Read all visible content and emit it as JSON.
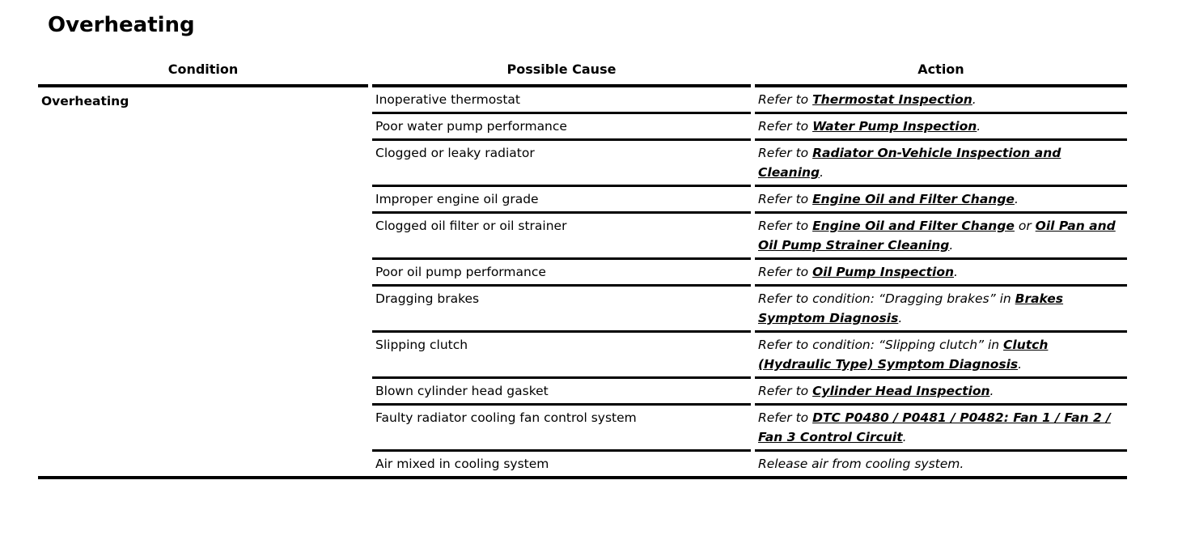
{
  "page": {
    "title": "Overheating"
  },
  "colors": {
    "text": "#000000",
    "background": "#ffffff",
    "rule": "#000000"
  },
  "table": {
    "headers": [
      "Condition",
      "Possible Cause",
      "Action"
    ],
    "condition": "Overheating",
    "rows": [
      {
        "cause": "Inoperative thermostat",
        "action": [
          {
            "text": "Refer to ",
            "link": false
          },
          {
            "text": "Thermostat Inspection",
            "link": true
          },
          {
            "text": ".",
            "link": false
          }
        ]
      },
      {
        "cause": "Poor water pump performance",
        "action": [
          {
            "text": "Refer to ",
            "link": false
          },
          {
            "text": "Water Pump Inspection",
            "link": true
          },
          {
            "text": ".",
            "link": false
          }
        ]
      },
      {
        "cause": "Clogged or leaky radiator",
        "action": [
          {
            "text": "Refer to ",
            "link": false
          },
          {
            "text": "Radiator On-Vehicle Inspection and Cleaning",
            "link": true
          },
          {
            "text": ".",
            "link": false
          }
        ]
      },
      {
        "cause": "Improper engine oil grade",
        "action": [
          {
            "text": "Refer to ",
            "link": false
          },
          {
            "text": "Engine Oil and Filter Change",
            "link": true
          },
          {
            "text": ".",
            "link": false
          }
        ]
      },
      {
        "cause": "Clogged oil filter or oil strainer",
        "action": [
          {
            "text": "Refer to ",
            "link": false
          },
          {
            "text": "Engine Oil and Filter Change",
            "link": true
          },
          {
            "text": " or ",
            "link": false
          },
          {
            "text": "Oil Pan and Oil Pump Strainer Cleaning",
            "link": true
          },
          {
            "text": ".",
            "link": false
          }
        ]
      },
      {
        "cause": "Poor oil pump performance",
        "action": [
          {
            "text": "Refer to ",
            "link": false
          },
          {
            "text": "Oil Pump Inspection",
            "link": true
          },
          {
            "text": ".",
            "link": false
          }
        ]
      },
      {
        "cause": "Dragging brakes",
        "action": [
          {
            "text": "Refer to condition: “Dragging brakes” in ",
            "link": false
          },
          {
            "text": "Brakes Symptom Diagnosis",
            "link": true
          },
          {
            "text": ".",
            "link": false
          }
        ]
      },
      {
        "cause": "Slipping clutch",
        "action": [
          {
            "text": "Refer to condition: “Slipping clutch” in ",
            "link": false
          },
          {
            "text": "Clutch (Hydraulic Type) Symptom Diagnosis",
            "link": true
          },
          {
            "text": ".",
            "link": false
          }
        ]
      },
      {
        "cause": "Blown cylinder head gasket",
        "action": [
          {
            "text": "Refer to ",
            "link": false
          },
          {
            "text": "Cylinder Head Inspection",
            "link": true
          },
          {
            "text": ".",
            "link": false
          }
        ]
      },
      {
        "cause": "Faulty radiator cooling fan control system",
        "action": [
          {
            "text": "Refer to ",
            "link": false
          },
          {
            "text": "DTC P0480 / P0481 / P0482: Fan 1 / Fan 2 / Fan 3 Control Circuit",
            "link": true
          },
          {
            "text": ".",
            "link": false
          }
        ]
      },
      {
        "cause": "Air mixed in cooling system",
        "action": [
          {
            "text": "Release air from cooling system.",
            "link": false
          }
        ]
      }
    ]
  }
}
